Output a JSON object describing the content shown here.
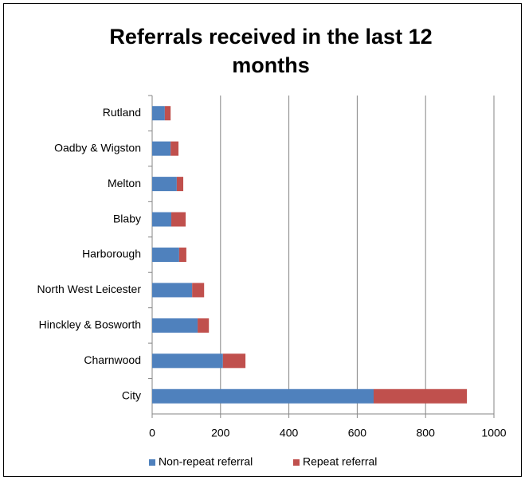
{
  "chart_data": {
    "type": "bar",
    "orientation": "horizontal",
    "stacked": true,
    "title": "Referrals received in the last 12 months",
    "categories": [
      "Rutland",
      "Oadby & Wigston",
      "Melton",
      "Blaby",
      "Harborough",
      "North West Leicester",
      "Hinckley & Bosworth",
      "Charnwood",
      "City"
    ],
    "series": [
      {
        "name": "Non-repeat referral",
        "color": "#4f81bd",
        "values": [
          37,
          54,
          72,
          56,
          79,
          117,
          133,
          207,
          648
        ]
      },
      {
        "name": "Repeat referral",
        "color": "#c0504d",
        "values": [
          17,
          23,
          19,
          42,
          21,
          35,
          33,
          66,
          273
        ]
      }
    ],
    "xlim": [
      0,
      1000
    ],
    "xticks": [
      0,
      200,
      400,
      600,
      800,
      1000
    ],
    "grid": true,
    "legend": "bottom"
  }
}
